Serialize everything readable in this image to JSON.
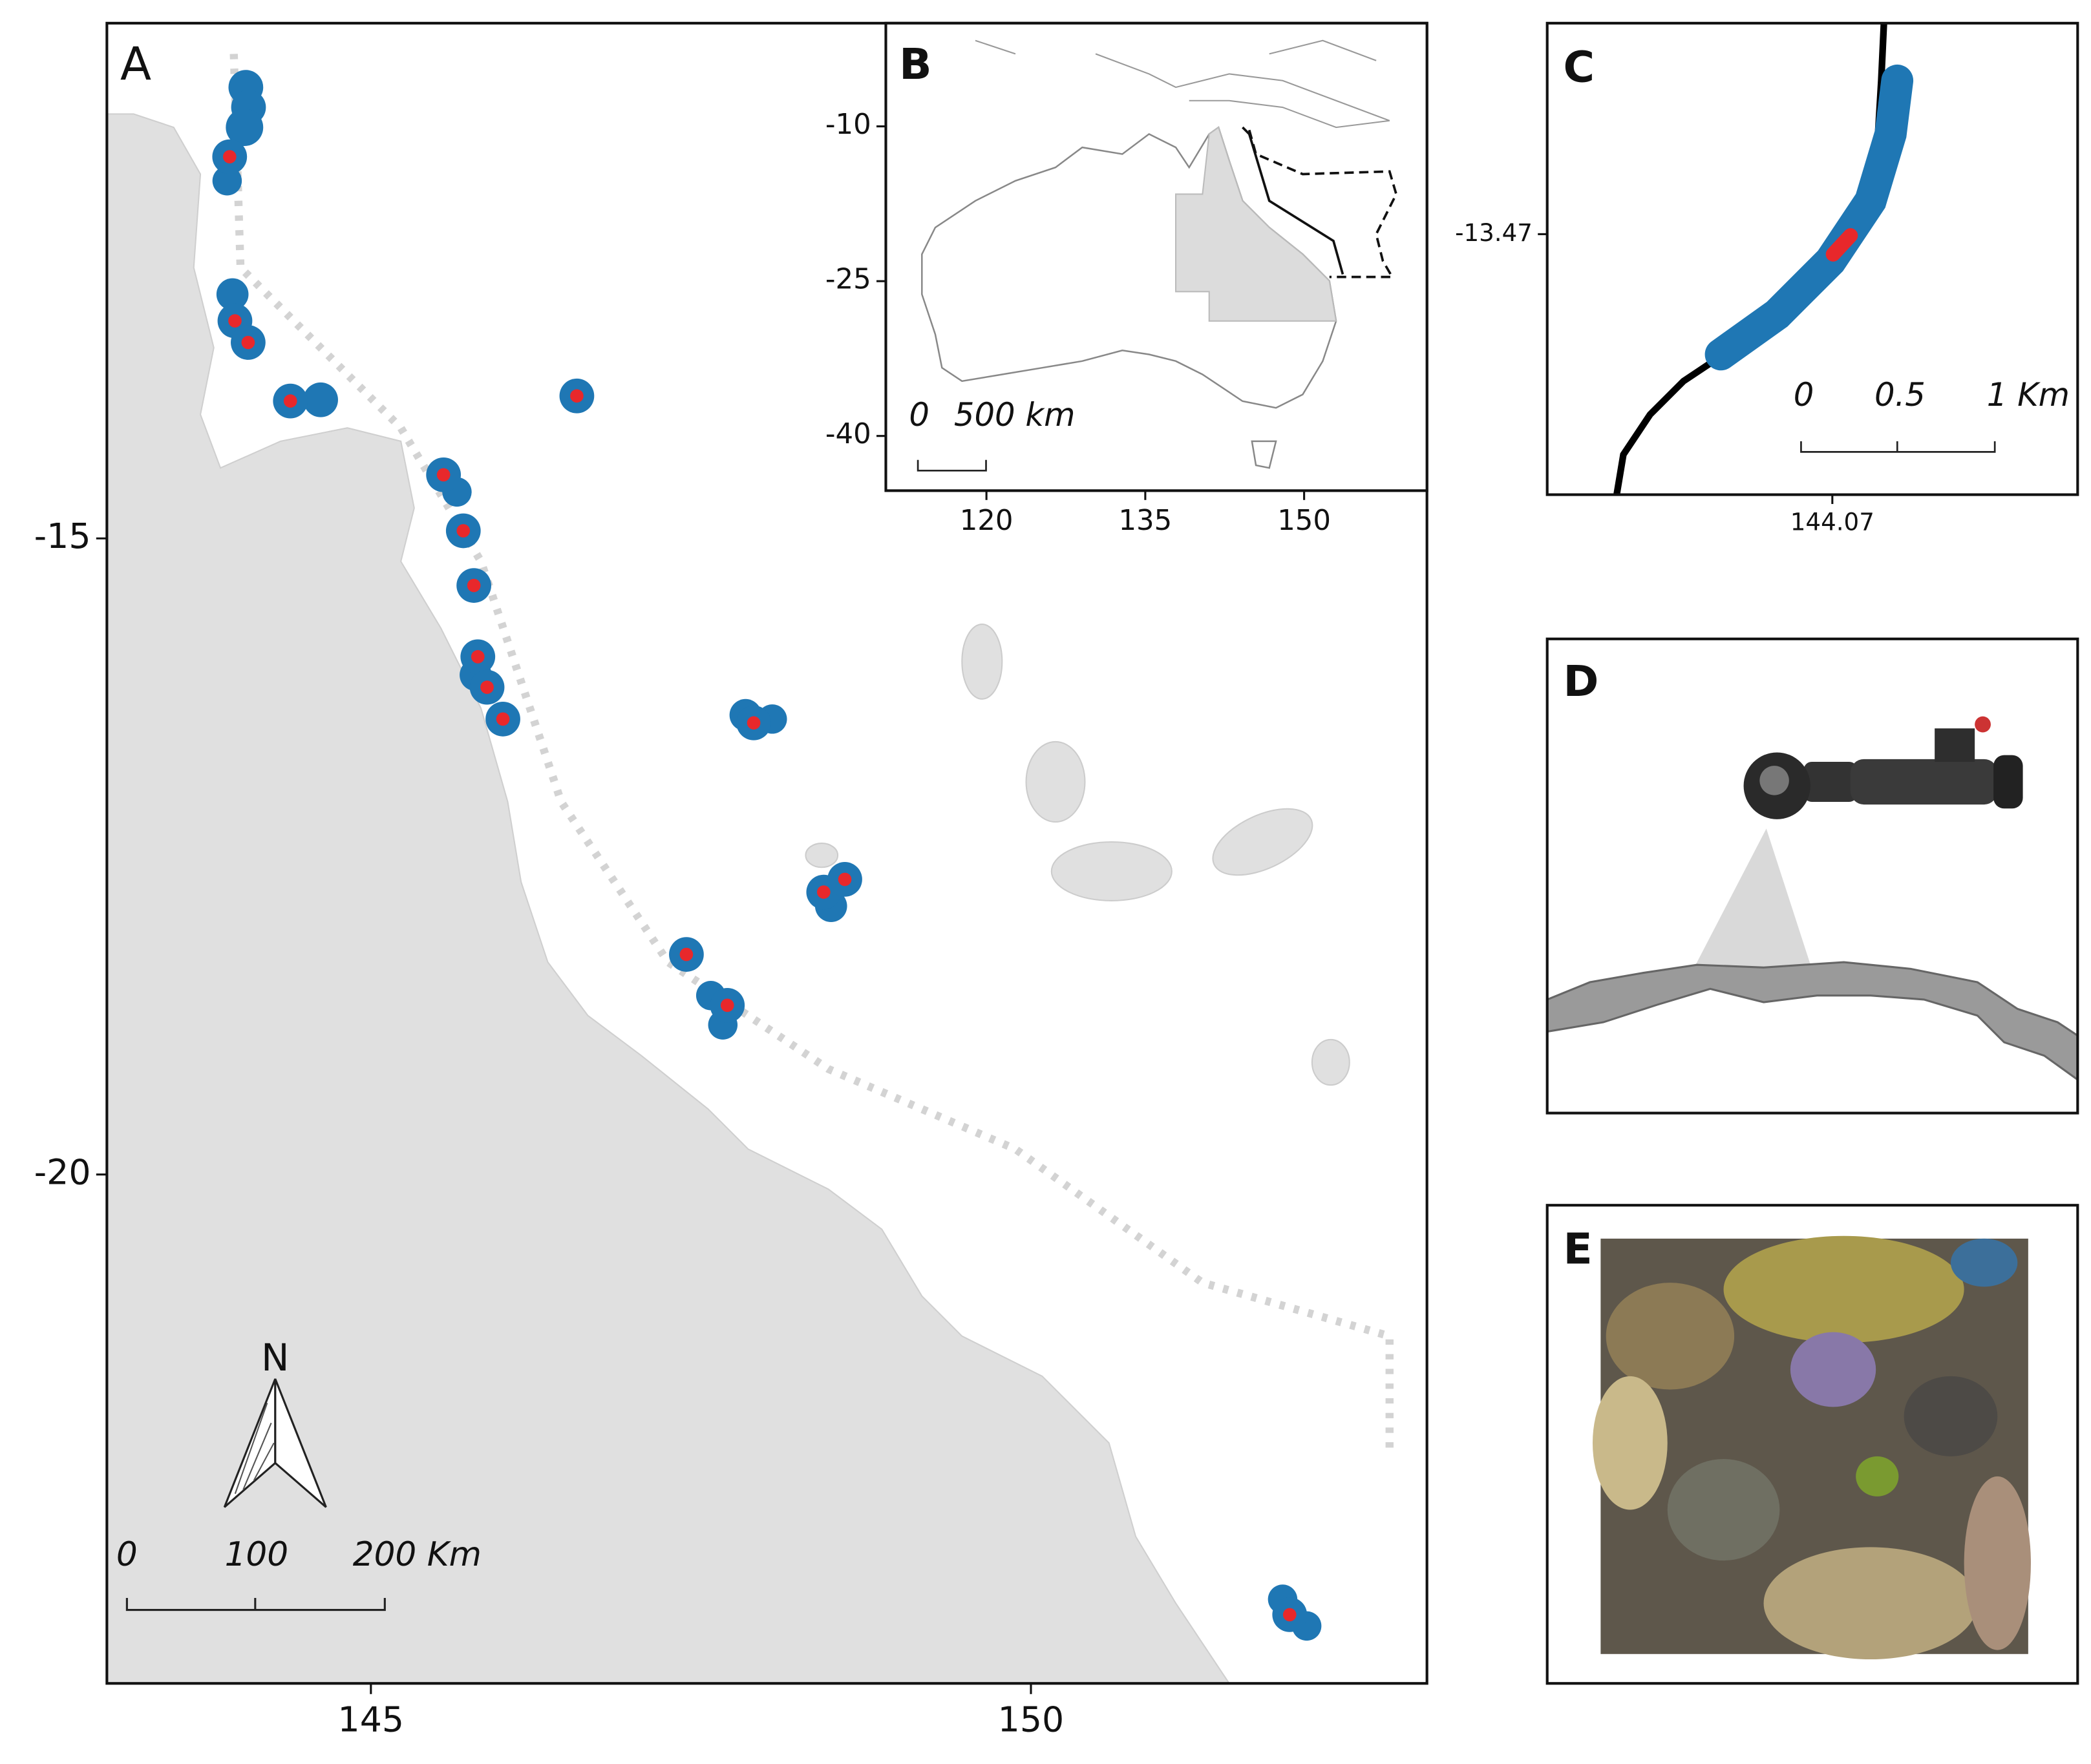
{
  "panel_a": {
    "label": "A",
    "xlim": [
      143,
      153
    ],
    "ylim": [
      -24,
      -10.95
    ],
    "xticks": [
      145,
      150
    ],
    "yticks": [
      -15,
      -20
    ],
    "north": "N",
    "scale_bar": [
      "0",
      "100",
      "200 Km"
    ],
    "sites": [
      {
        "lon": 143.93,
        "lat": -12.0
      },
      {
        "lon": 143.97,
        "lat": -13.29
      },
      {
        "lon": 144.07,
        "lat": -13.46
      },
      {
        "lon": 144.39,
        "lat": -13.92
      },
      {
        "lon": 146.56,
        "lat": -13.88
      },
      {
        "lon": 145.55,
        "lat": -14.5
      },
      {
        "lon": 145.7,
        "lat": -14.94
      },
      {
        "lon": 145.78,
        "lat": -15.37
      },
      {
        "lon": 145.81,
        "lat": -15.93
      },
      {
        "lon": 145.88,
        "lat": -16.17
      },
      {
        "lon": 146.0,
        "lat": -16.42
      },
      {
        "lon": 147.9,
        "lat": -16.45
      },
      {
        "lon": 148.43,
        "lat": -17.78
      },
      {
        "lon": 148.59,
        "lat": -17.68
      },
      {
        "lon": 147.39,
        "lat": -18.27
      },
      {
        "lon": 147.7,
        "lat": -18.67
      },
      {
        "lon": 151.96,
        "lat": -23.46
      }
    ]
  },
  "panel_b": {
    "label": "B",
    "xlim": [
      110.5,
      161.6
    ],
    "ylim": [
      -45.3,
      0
    ],
    "xticks": [
      120,
      135,
      150
    ],
    "yticks": [
      -10,
      -25,
      -40
    ],
    "scale_bar": [
      "0",
      "500 km"
    ]
  },
  "panel_c": {
    "label": "C",
    "xlim": [
      144.0564,
      144.0817
    ],
    "ylim": [
      -13.4821,
      -13.4602
    ],
    "xticks": [
      144.07
    ],
    "yticks": [
      -13.47
    ],
    "scale_bar": [
      "0",
      "0.5",
      "1 Km"
    ]
  },
  "panel_d": {
    "label": "D"
  },
  "panel_e": {
    "label": "E"
  }
}
